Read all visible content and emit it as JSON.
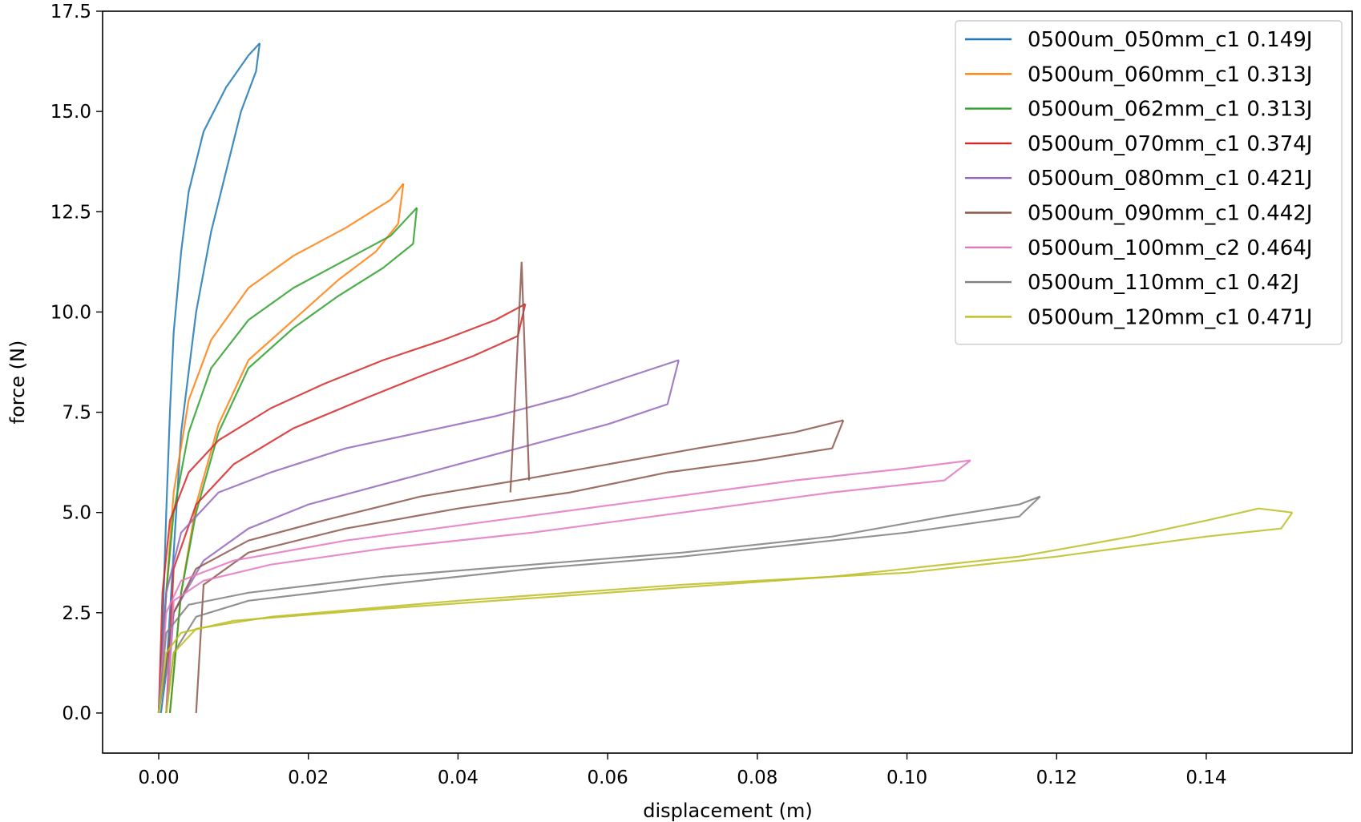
{
  "chart_data": {
    "type": "line",
    "xlabel": "displacement (m)",
    "ylabel": "force (N)",
    "xlim": [
      -0.0075,
      0.1595
    ],
    "ylim": [
      -1.0,
      17.5
    ],
    "xticks": [
      0.0,
      0.02,
      0.04,
      0.06,
      0.08,
      0.1,
      0.12,
      0.14
    ],
    "xtick_labels": [
      "0.00",
      "0.02",
      "0.04",
      "0.06",
      "0.08",
      "0.10",
      "0.12",
      "0.14"
    ],
    "yticks": [
      0.0,
      2.5,
      5.0,
      7.5,
      10.0,
      12.5,
      15.0,
      17.5
    ],
    "ytick_labels": [
      "0.0",
      "2.5",
      "5.0",
      "7.5",
      "10.0",
      "12.5",
      "15.0",
      "17.5"
    ],
    "grid": false,
    "legend_position": "top-right",
    "series": [
      {
        "name": "0500um_050mm_c1 0.149J",
        "color": "#1f77b4",
        "loading": [
          [
            0.0,
            0.0
          ],
          [
            0.0005,
            2.0
          ],
          [
            0.001,
            5.0
          ],
          [
            0.0015,
            7.5
          ],
          [
            0.002,
            9.5
          ],
          [
            0.003,
            11.5
          ],
          [
            0.004,
            13.0
          ],
          [
            0.006,
            14.5
          ],
          [
            0.009,
            15.6
          ],
          [
            0.012,
            16.4
          ],
          [
            0.0135,
            16.7
          ]
        ],
        "unloading": [
          [
            0.0135,
            16.7
          ],
          [
            0.013,
            16.0
          ],
          [
            0.011,
            15.0
          ],
          [
            0.009,
            13.5
          ],
          [
            0.007,
            12.0
          ],
          [
            0.005,
            10.0
          ],
          [
            0.003,
            7.0
          ],
          [
            0.002,
            4.0
          ],
          [
            0.001,
            1.0
          ],
          [
            0.0003,
            0.0
          ]
        ]
      },
      {
        "name": "0500um_060mm_c1 0.313J",
        "color": "#ff7f0e",
        "loading": [
          [
            0.0,
            0.0
          ],
          [
            0.001,
            3.0
          ],
          [
            0.002,
            5.5
          ],
          [
            0.004,
            7.8
          ],
          [
            0.007,
            9.3
          ],
          [
            0.012,
            10.6
          ],
          [
            0.018,
            11.4
          ],
          [
            0.025,
            12.1
          ],
          [
            0.031,
            12.8
          ],
          [
            0.0327,
            13.2
          ]
        ],
        "unloading": [
          [
            0.0327,
            13.2
          ],
          [
            0.032,
            12.2
          ],
          [
            0.029,
            11.5
          ],
          [
            0.024,
            10.8
          ],
          [
            0.018,
            9.8
          ],
          [
            0.012,
            8.8
          ],
          [
            0.008,
            7.2
          ],
          [
            0.005,
            5.2
          ],
          [
            0.003,
            3.0
          ],
          [
            0.0015,
            0.0
          ]
        ]
      },
      {
        "name": "0500um_062mm_c1 0.313J",
        "color": "#2ca02c",
        "loading": [
          [
            0.0,
            0.0
          ],
          [
            0.001,
            3.0
          ],
          [
            0.002,
            5.0
          ],
          [
            0.004,
            7.0
          ],
          [
            0.007,
            8.6
          ],
          [
            0.012,
            9.8
          ],
          [
            0.018,
            10.6
          ],
          [
            0.025,
            11.3
          ],
          [
            0.031,
            11.9
          ],
          [
            0.0345,
            12.6
          ]
        ],
        "unloading": [
          [
            0.0345,
            12.6
          ],
          [
            0.034,
            11.7
          ],
          [
            0.03,
            11.1
          ],
          [
            0.024,
            10.4
          ],
          [
            0.018,
            9.6
          ],
          [
            0.012,
            8.6
          ],
          [
            0.008,
            7.0
          ],
          [
            0.005,
            5.0
          ],
          [
            0.003,
            3.0
          ],
          [
            0.0015,
            0.0
          ]
        ]
      },
      {
        "name": "0500um_070mm_c1 0.374J",
        "color": "#d62728",
        "loading": [
          [
            0.0,
            0.0
          ],
          [
            0.0005,
            3.0
          ],
          [
            0.0015,
            4.8
          ],
          [
            0.004,
            6.0
          ],
          [
            0.008,
            6.8
          ],
          [
            0.015,
            7.6
          ],
          [
            0.022,
            8.2
          ],
          [
            0.03,
            8.8
          ],
          [
            0.038,
            9.3
          ],
          [
            0.045,
            9.8
          ],
          [
            0.049,
            10.2
          ]
        ],
        "unloading": [
          [
            0.049,
            10.2
          ],
          [
            0.048,
            9.4
          ],
          [
            0.042,
            8.9
          ],
          [
            0.035,
            8.4
          ],
          [
            0.027,
            7.8
          ],
          [
            0.018,
            7.1
          ],
          [
            0.01,
            6.2
          ],
          [
            0.005,
            5.2
          ],
          [
            0.002,
            3.6
          ],
          [
            0.001,
            0.0
          ]
        ]
      },
      {
        "name": "0500um_080mm_c1 0.421J",
        "color": "#9467bd",
        "loading": [
          [
            0.0,
            0.0
          ],
          [
            0.001,
            3.0
          ],
          [
            0.003,
            4.5
          ],
          [
            0.008,
            5.5
          ],
          [
            0.015,
            6.0
          ],
          [
            0.025,
            6.6
          ],
          [
            0.035,
            7.0
          ],
          [
            0.045,
            7.4
          ],
          [
            0.055,
            7.9
          ],
          [
            0.063,
            8.4
          ],
          [
            0.0695,
            8.8
          ]
        ],
        "unloading": [
          [
            0.0695,
            8.8
          ],
          [
            0.068,
            7.7
          ],
          [
            0.06,
            7.2
          ],
          [
            0.05,
            6.7
          ],
          [
            0.04,
            6.2
          ],
          [
            0.03,
            5.7
          ],
          [
            0.02,
            5.2
          ],
          [
            0.012,
            4.6
          ],
          [
            0.006,
            3.8
          ],
          [
            0.002,
            2.5
          ],
          [
            0.001,
            0.0
          ]
        ]
      },
      {
        "name": "0500um_090mm_c1 0.442J",
        "color": "#8c564b",
        "loading": [
          [
            0.0,
            0.0
          ],
          [
            0.002,
            2.5
          ],
          [
            0.005,
            3.6
          ],
          [
            0.012,
            4.3
          ],
          [
            0.022,
            4.8
          ],
          [
            0.035,
            5.4
          ],
          [
            0.048,
            5.8
          ],
          [
            0.06,
            6.2
          ],
          [
            0.072,
            6.6
          ],
          [
            0.085,
            7.0
          ],
          [
            0.0915,
            7.3
          ]
        ],
        "unloading": [
          [
            0.0915,
            7.3
          ],
          [
            0.09,
            6.6
          ],
          [
            0.08,
            6.3
          ],
          [
            0.068,
            6.0
          ],
          [
            0.055,
            5.5
          ],
          [
            0.04,
            5.1
          ],
          [
            0.025,
            4.6
          ],
          [
            0.012,
            4.0
          ],
          [
            0.006,
            3.2
          ],
          [
            0.005,
            0.0
          ]
        ]
      },
      {
        "name": "0500um_100mm_c2 0.464J",
        "color": "#e377c2",
        "loading": [
          [
            0.0,
            0.0
          ],
          [
            0.001,
            2.5
          ],
          [
            0.003,
            3.3
          ],
          [
            0.01,
            3.8
          ],
          [
            0.025,
            4.3
          ],
          [
            0.045,
            4.8
          ],
          [
            0.065,
            5.3
          ],
          [
            0.085,
            5.8
          ],
          [
            0.1,
            6.1
          ],
          [
            0.1085,
            6.3
          ]
        ],
        "unloading": [
          [
            0.1085,
            6.3
          ],
          [
            0.105,
            5.8
          ],
          [
            0.09,
            5.5
          ],
          [
            0.07,
            5.0
          ],
          [
            0.05,
            4.5
          ],
          [
            0.03,
            4.1
          ],
          [
            0.015,
            3.7
          ],
          [
            0.006,
            3.3
          ],
          [
            0.002,
            2.8
          ],
          [
            0.001,
            0.0
          ]
        ]
      },
      {
        "name": "0500um_110mm_c1 0.42J",
        "color": "#7f7f7f",
        "loading": [
          [
            0.0,
            0.0
          ],
          [
            0.001,
            2.0
          ],
          [
            0.004,
            2.7
          ],
          [
            0.012,
            3.0
          ],
          [
            0.03,
            3.4
          ],
          [
            0.05,
            3.7
          ],
          [
            0.07,
            4.0
          ],
          [
            0.09,
            4.4
          ],
          [
            0.105,
            4.9
          ],
          [
            0.115,
            5.2
          ],
          [
            0.1178,
            5.4
          ]
        ],
        "unloading": [
          [
            0.1178,
            5.4
          ],
          [
            0.115,
            4.9
          ],
          [
            0.1,
            4.5
          ],
          [
            0.09,
            4.3
          ],
          [
            0.07,
            3.9
          ],
          [
            0.05,
            3.6
          ],
          [
            0.03,
            3.2
          ],
          [
            0.012,
            2.8
          ],
          [
            0.005,
            2.4
          ],
          [
            0.002,
            1.5
          ],
          [
            0.001,
            0.0
          ]
        ]
      },
      {
        "name": "0500um_120mm_c1 0.471J",
        "color": "#bcbd22",
        "loading": [
          [
            0.0,
            0.0
          ],
          [
            0.001,
            1.5
          ],
          [
            0.003,
            2.0
          ],
          [
            0.01,
            2.3
          ],
          [
            0.03,
            2.6
          ],
          [
            0.06,
            3.0
          ],
          [
            0.09,
            3.4
          ],
          [
            0.115,
            3.9
          ],
          [
            0.13,
            4.4
          ],
          [
            0.14,
            4.8
          ],
          [
            0.147,
            5.1
          ],
          [
            0.1515,
            5.0
          ]
        ],
        "unloading": [
          [
            0.1515,
            5.0
          ],
          [
            0.15,
            4.6
          ],
          [
            0.14,
            4.4
          ],
          [
            0.12,
            3.9
          ],
          [
            0.1,
            3.5
          ],
          [
            0.07,
            3.2
          ],
          [
            0.04,
            2.8
          ],
          [
            0.015,
            2.4
          ],
          [
            0.005,
            2.1
          ],
          [
            0.002,
            1.5
          ],
          [
            0.001,
            0.0
          ]
        ]
      }
    ],
    "annotations": [
      {
        "type": "spike",
        "color": "#8c564b",
        "points": [
          [
            0.047,
            5.5
          ],
          [
            0.0485,
            11.25
          ],
          [
            0.0495,
            5.8
          ]
        ]
      }
    ]
  }
}
